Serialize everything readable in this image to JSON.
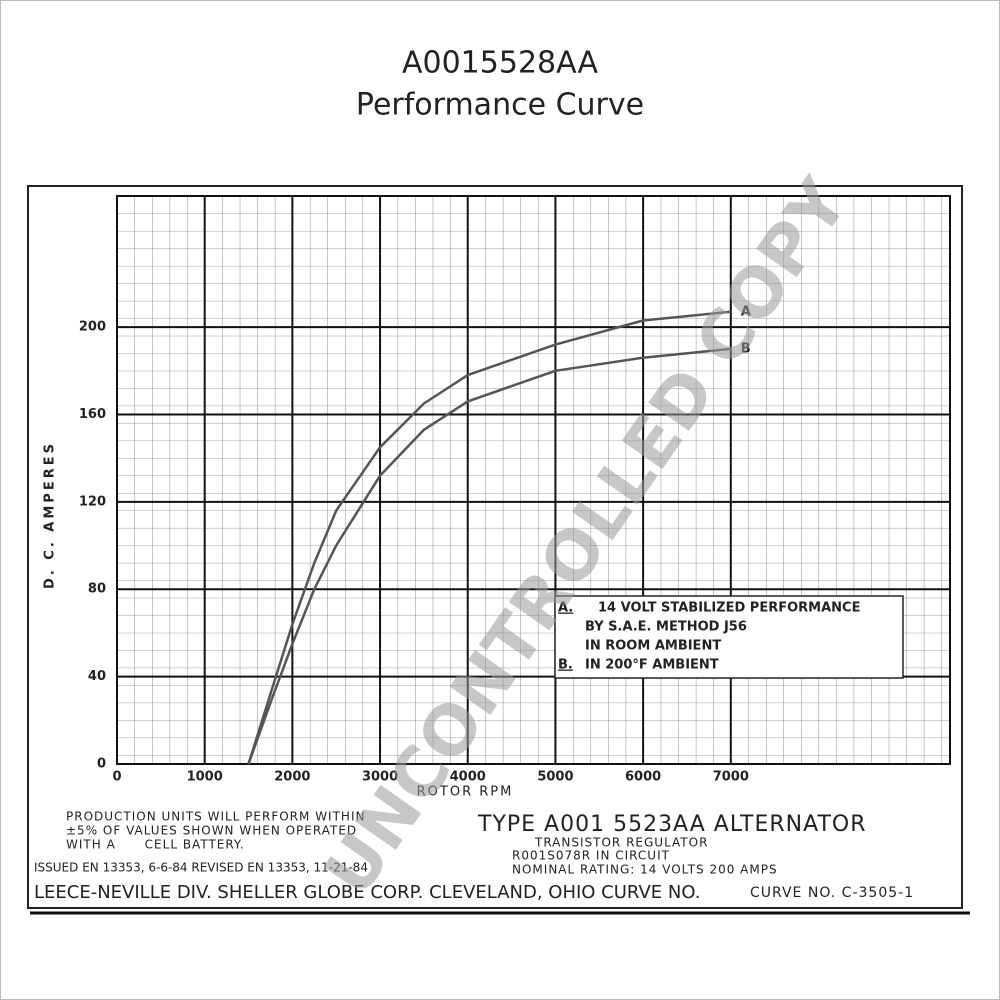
{
  "chart_data": {
    "type": "line",
    "title": "A0015528AA",
    "subtitle": "Performance Curve",
    "x_label": "ROTOR RPM",
    "y_label": "D. C. AMPERES",
    "x": [
      1500,
      1750,
      2000,
      2250,
      2500,
      3000,
      3500,
      4000,
      5000,
      6000,
      7000
    ],
    "series": [
      {
        "name": "A",
        "color": "#555555",
        "values": [
          0,
          32,
          64,
          92,
          116,
          145,
          165,
          178,
          192,
          203,
          207
        ]
      },
      {
        "name": "B",
        "color": "#555555",
        "values": [
          0,
          28,
          55,
          80,
          100,
          132,
          153,
          166,
          180,
          186,
          190
        ]
      }
    ],
    "xlim": [
      0,
      9500
    ],
    "ylim": [
      0,
      260
    ],
    "xticks": [
      0,
      1000,
      2000,
      3000,
      4000,
      5000,
      6000,
      7000
    ],
    "yticks": [
      0,
      40,
      80,
      120,
      160,
      200
    ],
    "grid": true,
    "legend_box": {
      "a_key": "A.",
      "a_lines": [
        "14 VOLT STABILIZED PERFORMANCE",
        "BY S.A.E. METHOD J56",
        "IN ROOM AMBIENT"
      ],
      "b_key": "B.",
      "b_line": "IN 200°F AMBIENT"
    },
    "footer": {
      "production": [
        "PRODUCTION UNITS WILL PERFORM WITHIN",
        "±5% OF VALUES SHOWN WHEN OPERATED",
        "WITH A      CELL BATTERY."
      ],
      "type_line": "TYPE A001 5523AA ALTERNATOR",
      "regulator": [
        "TRANSISTOR REGULATOR",
        "R001S078R IN CIRCUIT"
      ],
      "rating": "NOMINAL RATING: 14 VOLTS 200 AMPS",
      "issued": "ISSUED EN 13353, 6-6-84 REVISED EN 13353, 11-21-84",
      "company": "LEECE-NEVILLE DIV. SHELLER GLOBE CORP. CLEVELAND, OHIO  CURVE NO.",
      "curve_no": "CURVE NO. C-3505-1"
    },
    "watermark": "UNCONTROLLED COPY"
  }
}
